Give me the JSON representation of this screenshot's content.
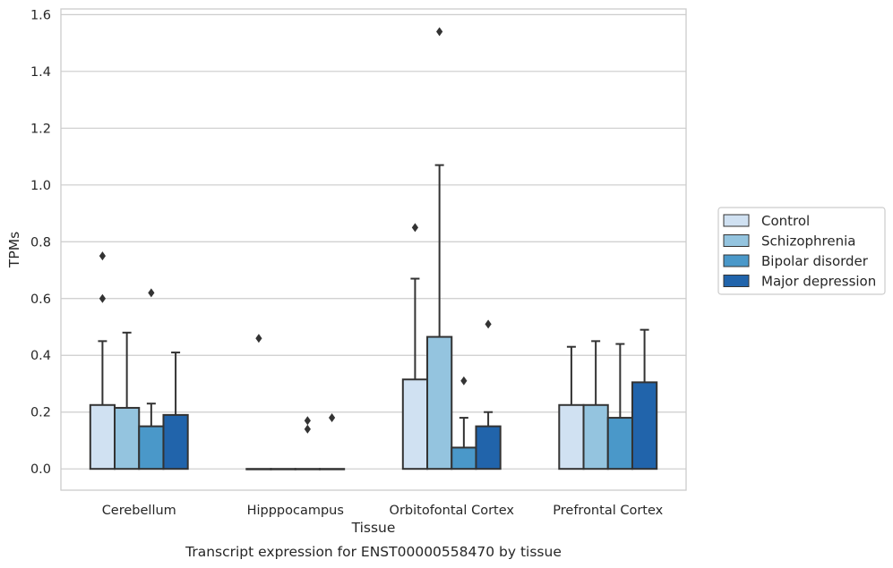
{
  "chart_data": {
    "type": "bar",
    "caption": "Transcript expression for ENST00000558470 by tissue",
    "xlabel": "Tissue",
    "ylabel": "TPMs",
    "ylim": [
      -0.075,
      1.62
    ],
    "yticks": [
      "0.0",
      "0.2",
      "0.4",
      "0.6",
      "0.8",
      "1.0",
      "1.2",
      "1.4",
      "1.6"
    ],
    "grid": true,
    "legend_position": "right",
    "categories": [
      "Cerebellum",
      "Hipppocampus",
      "Orbitofontal Cortex",
      "Prefrontal Cortex"
    ],
    "series": [
      {
        "name": "Control",
        "color": "#d0e1f2",
        "values": [
          0.225,
          0.0,
          0.315,
          0.225
        ],
        "whisker_high": [
          0.45,
          0.0,
          0.67,
          0.43
        ],
        "outliers": [
          [
            0.75,
            0.6
          ],
          [
            0.46
          ],
          [
            0.85
          ],
          []
        ]
      },
      {
        "name": "Schizophrenia",
        "color": "#94c4df",
        "values": [
          0.215,
          0.0,
          0.465,
          0.225
        ],
        "whisker_high": [
          0.48,
          0.0,
          1.07,
          0.45
        ],
        "outliers": [
          [],
          [],
          [
            1.54
          ],
          []
        ]
      },
      {
        "name": "Bipolar disorder",
        "color": "#4a98c9",
        "values": [
          0.15,
          0.0,
          0.075,
          0.18
        ],
        "whisker_high": [
          0.23,
          0.0,
          0.18,
          0.44
        ],
        "outliers": [
          [
            0.62
          ],
          [
            0.17,
            0.14
          ],
          [
            0.31
          ],
          []
        ]
      },
      {
        "name": "Major depression",
        "color": "#2164ab",
        "values": [
          0.19,
          0.0,
          0.15,
          0.305
        ],
        "whisker_high": [
          0.41,
          0.0,
          0.2,
          0.49
        ],
        "outliers": [
          [],
          [
            0.18
          ],
          [
            0.51
          ],
          []
        ]
      }
    ]
  }
}
